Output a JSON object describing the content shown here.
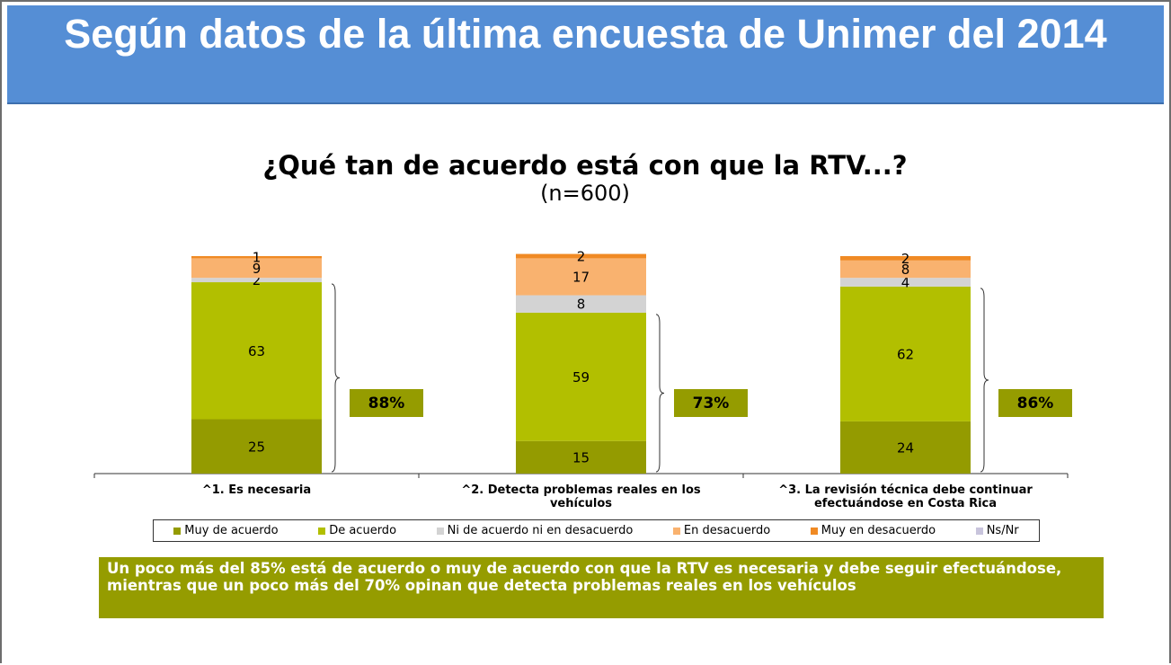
{
  "header": {
    "title": "Según datos de la última encuesta de Unimer del 2014"
  },
  "chart_data": {
    "type": "bar",
    "stacked": true,
    "title": "¿Qué tan de acuerdo está con que la RTV...?",
    "subtitle": "(n=600)",
    "categories": [
      "^1. Es necesaria",
      "^2. Detecta problemas reales en los vehículos",
      "^3. La revisión técnica debe continuar efectuándose en Costa Rica"
    ],
    "series": [
      {
        "name": "Muy de acuerdo",
        "color": "#949b00",
        "values": [
          25,
          15,
          24
        ]
      },
      {
        "name": "De acuerdo",
        "color": "#b2bf00",
        "values": [
          63,
          59,
          62
        ]
      },
      {
        "name": "Ni de acuerdo ni en desacuerdo",
        "color": "#d3d3d3",
        "values": [
          2,
          8,
          4
        ]
      },
      {
        "name": "En desacuerdo",
        "color": "#f9b26f",
        "values": [
          9,
          17,
          8
        ]
      },
      {
        "name": "Muy en desacuerdo",
        "color": "#f08a24",
        "values": [
          1,
          2,
          2
        ]
      },
      {
        "name": "Ns/Nr",
        "color": "#c8c4dc",
        "values": [
          0,
          0,
          0
        ]
      }
    ],
    "ylim": [
      0,
      100
    ],
    "totals": {
      "values": [
        88,
        73,
        86
      ],
      "value_labels": [
        "88%",
        "73%",
        "86%"
      ],
      "color": "#959c00"
    }
  },
  "summary": "Un poco más del 85% está de acuerdo o muy de acuerdo con que la RTV es necesaria y debe seguir efectuándose, mientras que un poco más del 70% opinan que detecta problemas reales en los vehículos"
}
